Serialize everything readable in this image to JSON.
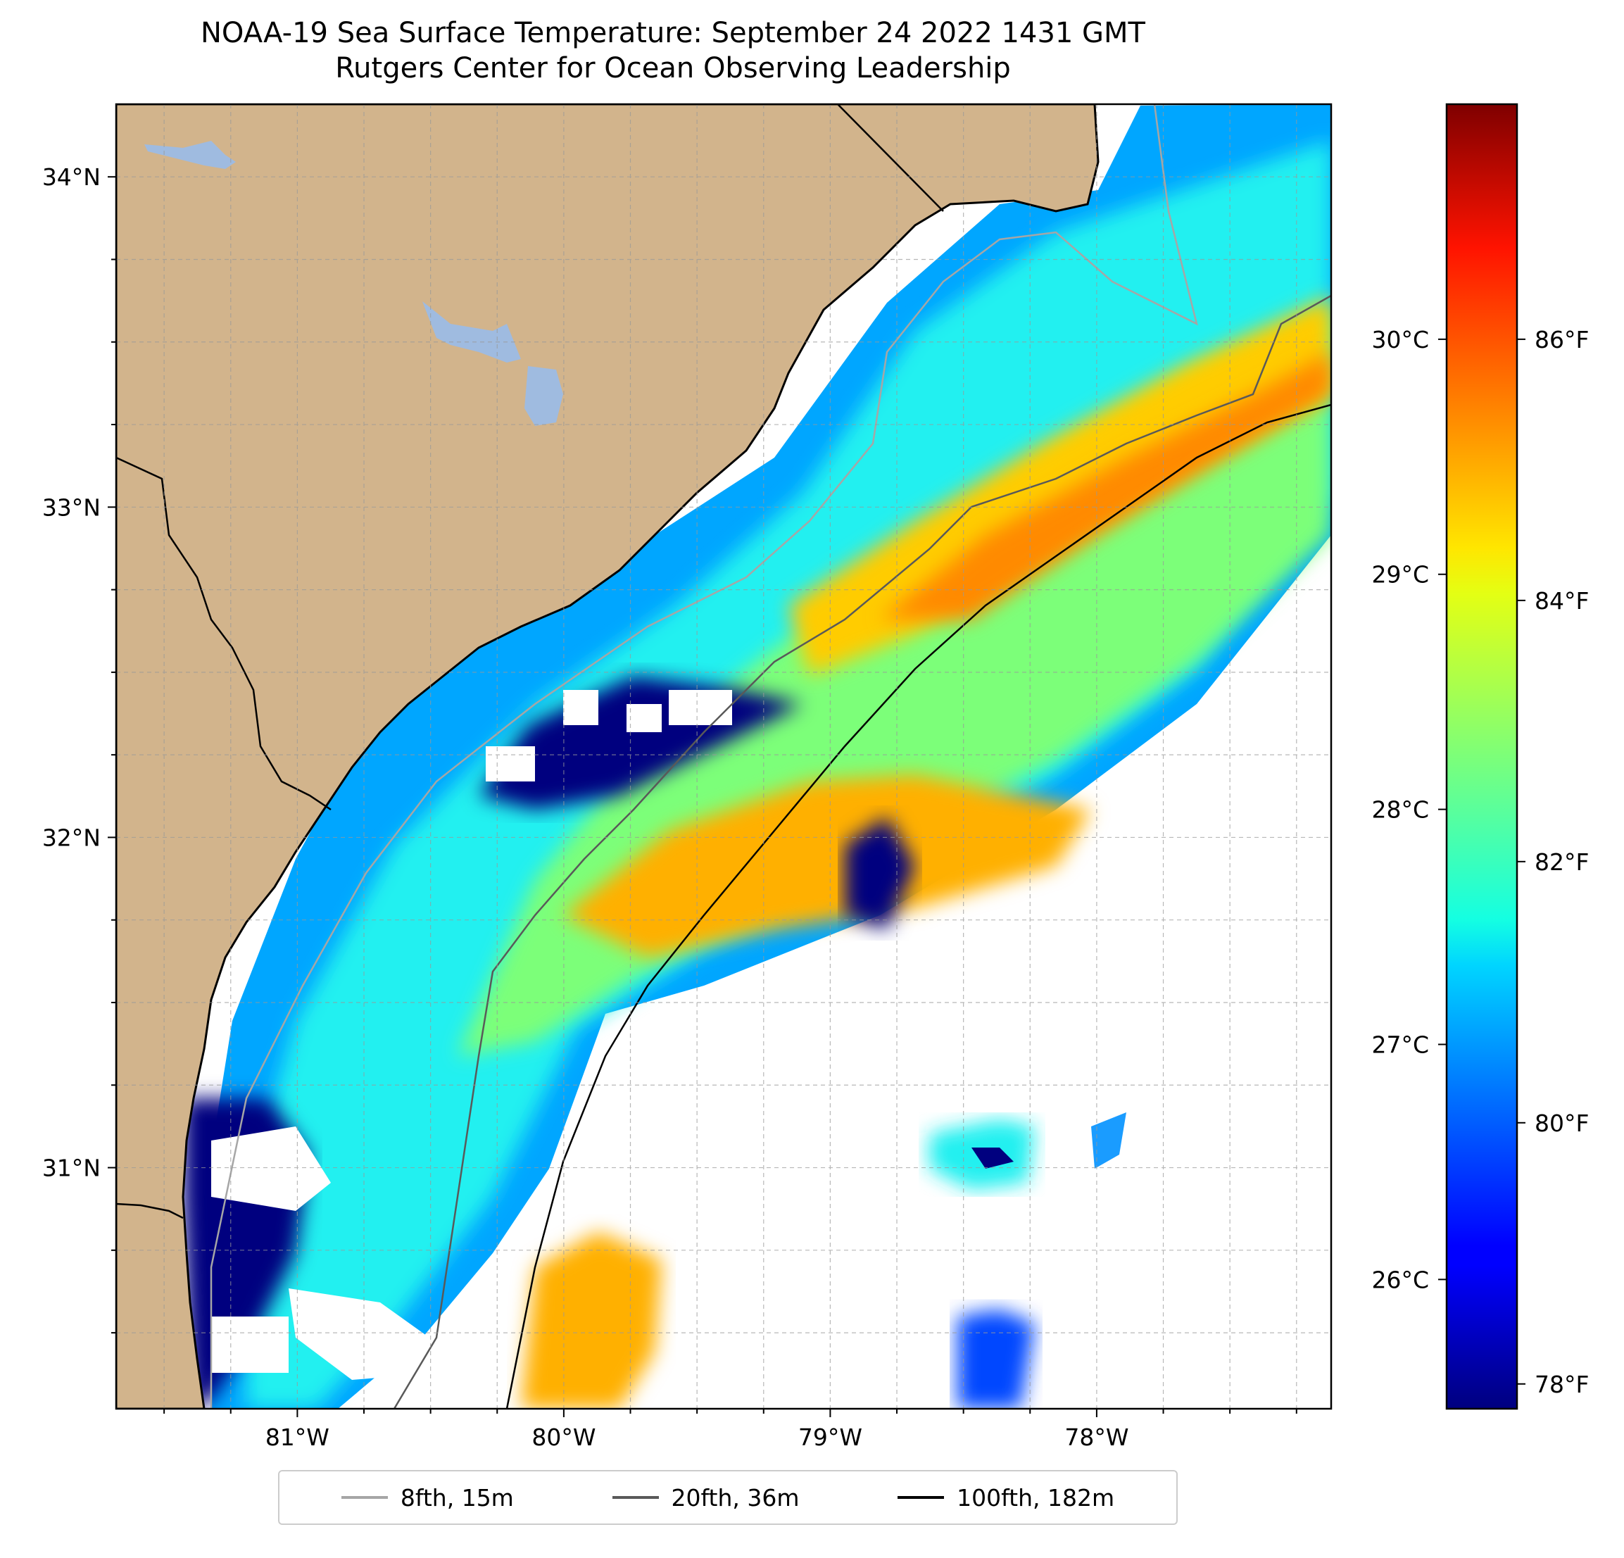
{
  "title": {
    "line1": "NOAA-19 Sea Surface Temperature: September 24 2022 1431 GMT",
    "line2": "Rutgers Center for Ocean Observing Leadership"
  },
  "map": {
    "lon_range": [
      -81.68,
      -77.12
    ],
    "lat_range": [
      30.27,
      34.22
    ],
    "x_ticks": [
      {
        "value": -81,
        "label": "81°W"
      },
      {
        "value": -80,
        "label": "80°W"
      },
      {
        "value": -79,
        "label": "79°W"
      },
      {
        "value": -78,
        "label": "78°W"
      }
    ],
    "y_ticks": [
      {
        "value": 34,
        "label": "34°N"
      },
      {
        "value": 33,
        "label": "33°N"
      },
      {
        "value": 32,
        "label": "32°N"
      },
      {
        "value": 31,
        "label": "31°N"
      }
    ],
    "grid": true,
    "land_color": "#d2b48c",
    "lake_color": "#9fbbe0",
    "no_data_color": "#ffffff"
  },
  "colorbar": {
    "colormap": "jet",
    "celsius_ticks": [
      {
        "value": 30,
        "label": "30°C"
      },
      {
        "value": 29,
        "label": "29°C"
      },
      {
        "value": 28,
        "label": "28°C"
      },
      {
        "value": 27,
        "label": "27°C"
      },
      {
        "value": 26,
        "label": "26°C"
      }
    ],
    "fahrenheit_ticks": [
      {
        "value": 86,
        "label": "86°F"
      },
      {
        "value": 84,
        "label": "84°F"
      },
      {
        "value": 82,
        "label": "82°F"
      },
      {
        "value": 80,
        "label": "80°F"
      },
      {
        "value": 78,
        "label": "78°F"
      }
    ],
    "range_c": [
      25.45,
      31.0
    ]
  },
  "legend": {
    "placement": "bottom-center",
    "entries": [
      {
        "label": "8fth, 15m",
        "color": "#a6a6a6"
      },
      {
        "label": "20fth, 36m",
        "color": "#595959"
      },
      {
        "label": "100fth, 182m",
        "color": "#000000"
      }
    ]
  }
}
